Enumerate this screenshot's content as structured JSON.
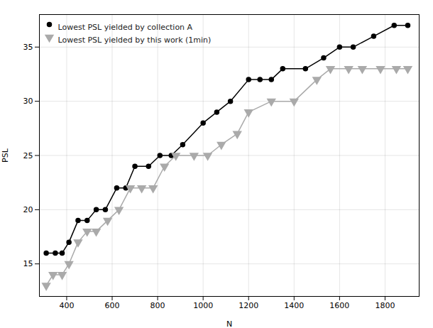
{
  "chart_data": {
    "type": "line",
    "xlabel": "N",
    "ylabel": "PSL",
    "series": [
      {
        "name": "Lowest PSL yielded by collection A",
        "color": "#000000",
        "marker": "circle",
        "x": [
          310,
          350,
          380,
          410,
          450,
          490,
          530,
          570,
          620,
          660,
          700,
          760,
          810,
          860,
          910,
          1000,
          1060,
          1120,
          1200,
          1250,
          1300,
          1350,
          1450,
          1530,
          1600,
          1660,
          1750,
          1840,
          1900
        ],
        "values": [
          16,
          16,
          16,
          17,
          19,
          19,
          20,
          20,
          22,
          22,
          24,
          24,
          25,
          25,
          26,
          28,
          29,
          30,
          32,
          32,
          32,
          33,
          33,
          34,
          35,
          35,
          36,
          37,
          37
        ]
      },
      {
        "name": "Lowest PSL yielded by this work (1min)",
        "color": "#aaaaaa",
        "marker": "triangle_down",
        "x": [
          310,
          340,
          380,
          410,
          450,
          490,
          530,
          580,
          630,
          680,
          730,
          780,
          830,
          880,
          960,
          1020,
          1080,
          1150,
          1200,
          1300,
          1400,
          1500,
          1560,
          1640,
          1700,
          1780,
          1850,
          1900
        ],
        "values": [
          13,
          14,
          14,
          15,
          17,
          18,
          18,
          19,
          20,
          22,
          22,
          22,
          24,
          25,
          25,
          25,
          26,
          27,
          29,
          30,
          30,
          32,
          33,
          33,
          33,
          33,
          33,
          33
        ]
      }
    ],
    "xlim": [
      280,
      1950
    ],
    "ylim": [
      12,
      38
    ],
    "xticks": [
      400,
      600,
      800,
      1000,
      1200,
      1400,
      1600,
      1800
    ],
    "yticks": [
      15,
      20,
      25,
      30,
      35
    ],
    "grid": true,
    "legend": "upper left"
  }
}
